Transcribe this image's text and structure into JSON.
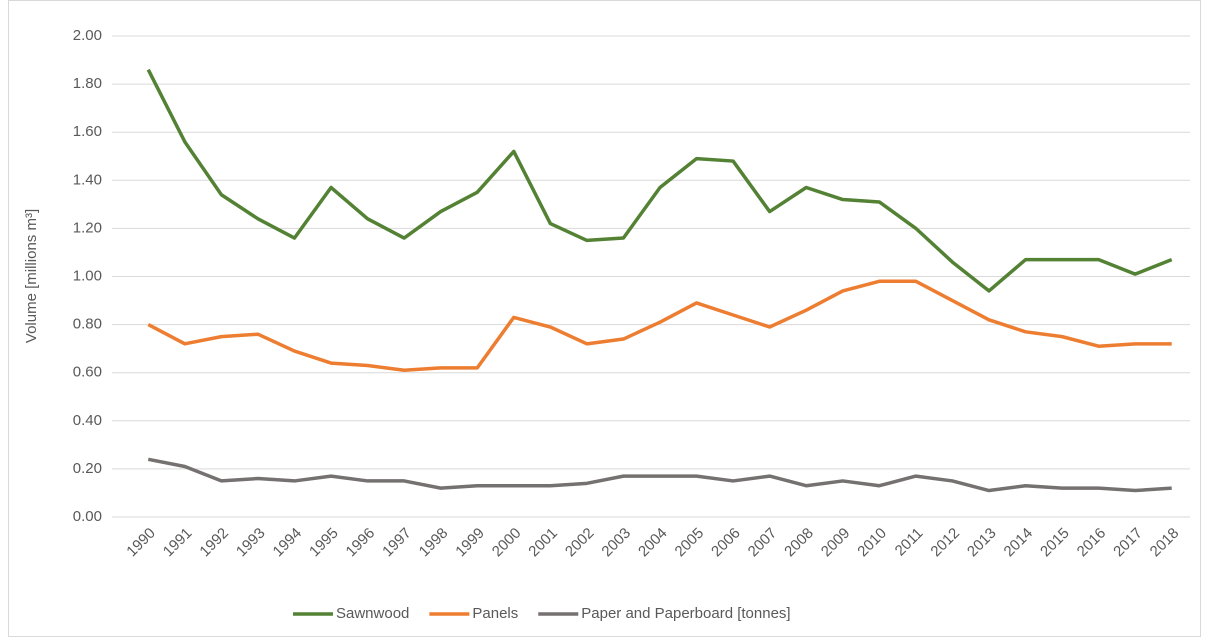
{
  "chart_data": {
    "type": "line",
    "y_label": "Volume [millions m³]",
    "categories": [
      "1990",
      "1991",
      "1992",
      "1993",
      "1994",
      "1995",
      "1996",
      "1997",
      "1998",
      "1999",
      "2000",
      "2001",
      "2002",
      "2003",
      "2004",
      "2005",
      "2006",
      "2007",
      "2008",
      "2009",
      "2010",
      "2011",
      "2012",
      "2013",
      "2014",
      "2015",
      "2016",
      "2017",
      "2018"
    ],
    "series": [
      {
        "name": "Sawnwood",
        "color": "#548235",
        "values": [
          1.86,
          1.56,
          1.34,
          1.24,
          1.16,
          1.37,
          1.24,
          1.16,
          1.27,
          1.35,
          1.52,
          1.22,
          1.15,
          1.16,
          1.37,
          1.49,
          1.48,
          1.27,
          1.37,
          1.32,
          1.31,
          1.2,
          1.06,
          0.94,
          1.07,
          1.07,
          1.07,
          1.01,
          1.07
        ]
      },
      {
        "name": "Panels",
        "color": "#ed7d31",
        "values": [
          0.8,
          0.72,
          0.75,
          0.76,
          0.69,
          0.64,
          0.63,
          0.61,
          0.62,
          0.62,
          0.83,
          0.79,
          0.72,
          0.74,
          0.81,
          0.89,
          0.84,
          0.79,
          0.86,
          0.94,
          0.98,
          0.98,
          0.9,
          0.82,
          0.77,
          0.75,
          0.71,
          0.72,
          0.72
        ]
      },
      {
        "name": "Paper and Paperboard [tonnes]",
        "color": "#767171",
        "values": [
          0.24,
          0.21,
          0.15,
          0.16,
          0.15,
          0.17,
          0.15,
          0.15,
          0.12,
          0.13,
          0.13,
          0.13,
          0.14,
          0.17,
          0.17,
          0.17,
          0.15,
          0.17,
          0.13,
          0.15,
          0.13,
          0.17,
          0.15,
          0.11,
          0.13,
          0.12,
          0.12,
          0.11,
          0.12
        ]
      }
    ],
    "ylim": [
      0,
      2
    ],
    "yticks": [
      {
        "value": 0,
        "label": "0.00"
      },
      {
        "value": 0.2,
        "label": "0.20"
      },
      {
        "value": 0.4,
        "label": "0.40"
      },
      {
        "value": 0.6,
        "label": "0.60"
      },
      {
        "value": 0.8,
        "label": "0.80"
      },
      {
        "value": 1,
        "label": "1.00"
      },
      {
        "value": 1.2,
        "label": "1.20"
      },
      {
        "value": 1.4,
        "label": "1.40"
      },
      {
        "value": 1.6,
        "label": "1.60"
      },
      {
        "value": 1.8,
        "label": "1.80"
      },
      {
        "value": 2,
        "label": "2.00"
      }
    ],
    "grid": true,
    "legend": "bottom"
  }
}
